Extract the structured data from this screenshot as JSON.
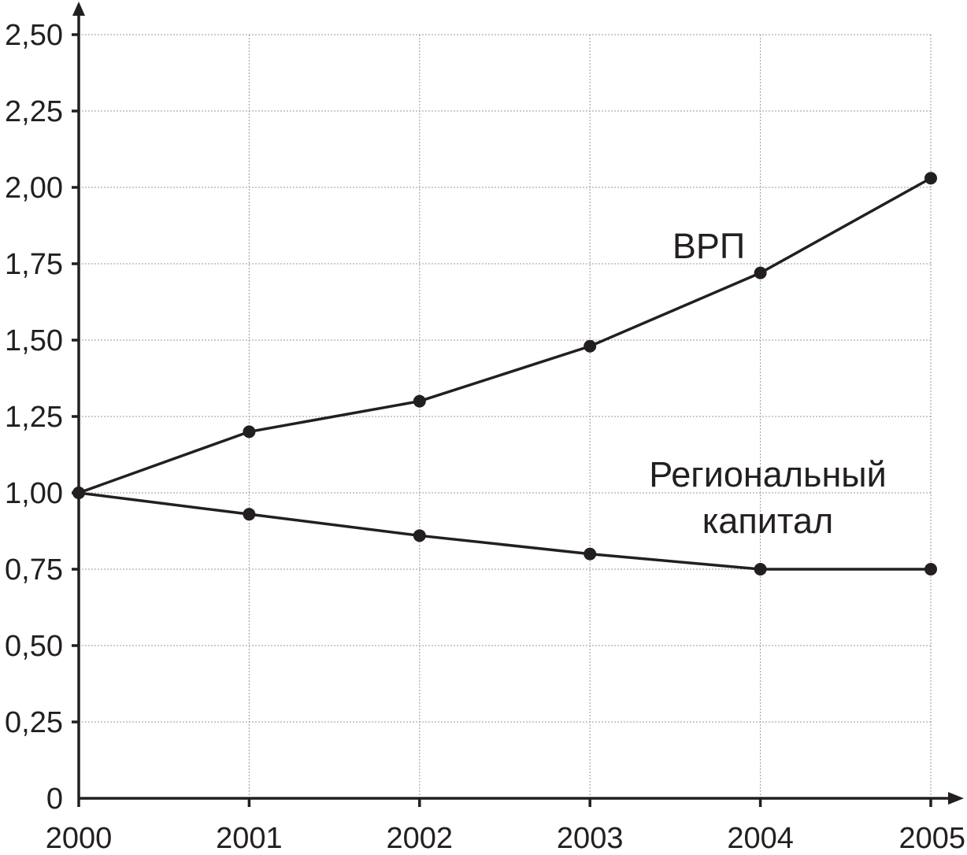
{
  "chart_data": {
    "type": "line",
    "x": [
      "2000",
      "2001",
      "2002",
      "2003",
      "2004",
      "2005"
    ],
    "y_ticks": [
      "0",
      "0,25",
      "0,50",
      "0,75",
      "1,00",
      "1,25",
      "1,50",
      "1,75",
      "2,00",
      "2,25",
      "2,50"
    ],
    "ylim": [
      0,
      2.5
    ],
    "grid": true,
    "series": [
      {
        "name": "ВРП",
        "values": [
          1.0,
          1.2,
          1.3,
          1.48,
          1.72,
          2.03
        ]
      },
      {
        "name": "Региональный капитал",
        "name_lines": [
          "Региональный",
          "капитал"
        ],
        "values": [
          1.0,
          0.93,
          0.86,
          0.8,
          0.75,
          0.75
        ]
      }
    ],
    "title": "",
    "xlabel": "",
    "ylabel": ""
  }
}
